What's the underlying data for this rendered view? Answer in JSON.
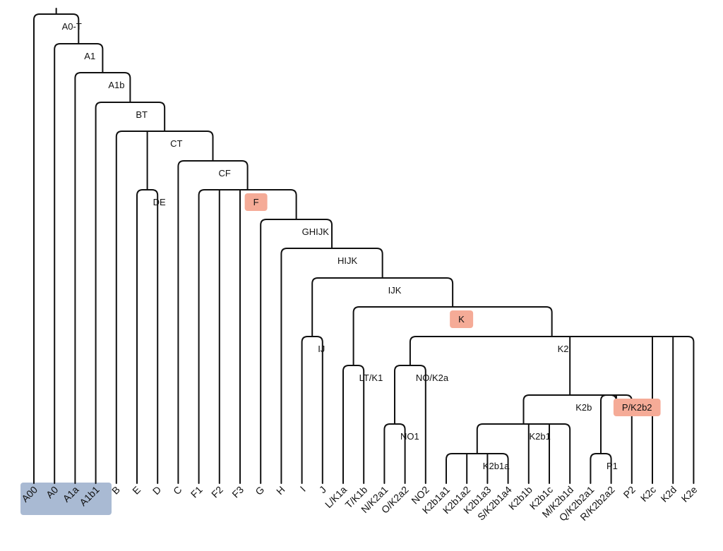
{
  "diagram": {
    "type": "phylogenetic-tree",
    "highlight_colors": {
      "node": "#f5ab97",
      "leaf_group": "#a9bad3"
    },
    "leaves": [
      {
        "id": "A00",
        "label": "A00",
        "highlight": true
      },
      {
        "id": "A0",
        "label": "A0",
        "highlight": true
      },
      {
        "id": "A1a",
        "label": "A1a",
        "highlight": true
      },
      {
        "id": "A1b1",
        "label": "A1b1",
        "highlight": true
      },
      {
        "id": "B",
        "label": "B"
      },
      {
        "id": "E",
        "label": "E"
      },
      {
        "id": "D",
        "label": "D"
      },
      {
        "id": "C",
        "label": "C"
      },
      {
        "id": "F1",
        "label": "F1"
      },
      {
        "id": "F2",
        "label": "F2"
      },
      {
        "id": "F3",
        "label": "F3"
      },
      {
        "id": "G",
        "label": "G"
      },
      {
        "id": "H",
        "label": "H"
      },
      {
        "id": "I",
        "label": "I"
      },
      {
        "id": "J",
        "label": "J"
      },
      {
        "id": "L_K1a",
        "label": "L/K1a"
      },
      {
        "id": "T_K1b",
        "label": "T/K1b"
      },
      {
        "id": "N_K2a1",
        "label": "N/K2a1"
      },
      {
        "id": "O_K2a2",
        "label": "O/K2a2"
      },
      {
        "id": "NO2",
        "label": "NO2"
      },
      {
        "id": "K2b1a1",
        "label": "K2b1a1"
      },
      {
        "id": "K2b1a2",
        "label": "K2b1a2"
      },
      {
        "id": "K2b1a3",
        "label": "K2b1a3"
      },
      {
        "id": "S_K2b1a4",
        "label": "S/K2b1a4"
      },
      {
        "id": "K2b1b",
        "label": "K2b1b"
      },
      {
        "id": "K2b1c",
        "label": "K2b1c"
      },
      {
        "id": "M_K2b1d",
        "label": "M/K2b1d"
      },
      {
        "id": "Q_K2b2a1",
        "label": "Q/K2b2a1"
      },
      {
        "id": "R_K2b2a2",
        "label": "R/K2b2a2"
      },
      {
        "id": "P2",
        "label": "P2"
      },
      {
        "id": "K2c",
        "label": "K2c"
      },
      {
        "id": "K2d",
        "label": "K2d"
      },
      {
        "id": "K2e",
        "label": "K2e"
      }
    ],
    "nodes": [
      {
        "id": "A0-T",
        "label": "A0-T",
        "children": [
          "A00",
          "A1"
        ]
      },
      {
        "id": "A1",
        "label": "A1",
        "children": [
          "A0",
          "A1b"
        ]
      },
      {
        "id": "A1b",
        "label": "A1b",
        "children": [
          "A1a",
          "BT"
        ]
      },
      {
        "id": "BT",
        "label": "BT",
        "children": [
          "A1b1",
          "CT"
        ]
      },
      {
        "id": "CT",
        "label": "CT",
        "children": [
          "B",
          "DE",
          "CF"
        ]
      },
      {
        "id": "DE",
        "label": "DE",
        "children": [
          "E",
          "D"
        ]
      },
      {
        "id": "CF",
        "label": "CF",
        "children": [
          "C",
          "F"
        ]
      },
      {
        "id": "F",
        "label": "F",
        "highlight": true,
        "children": [
          "F1",
          "F2",
          "F3",
          "GHIJK"
        ]
      },
      {
        "id": "GHIJK",
        "label": "GHIJK",
        "children": [
          "G",
          "HIJK"
        ]
      },
      {
        "id": "HIJK",
        "label": "HIJK",
        "children": [
          "H",
          "IJK"
        ]
      },
      {
        "id": "IJK",
        "label": "IJK",
        "children": [
          "IJ",
          "K"
        ]
      },
      {
        "id": "IJ",
        "label": "IJ",
        "children": [
          "I",
          "J"
        ]
      },
      {
        "id": "K",
        "label": "K",
        "highlight": true,
        "children": [
          "LT_K1",
          "K2"
        ]
      },
      {
        "id": "LT_K1",
        "label": "LT/K1",
        "children": [
          "L_K1a",
          "T_K1b"
        ]
      },
      {
        "id": "K2",
        "label": "K2",
        "children": [
          "NO_K2a",
          "K2b",
          "K2c",
          "K2d",
          "K2e"
        ]
      },
      {
        "id": "NO_K2a",
        "label": "NO/K2a",
        "children": [
          "NO1",
          "NO2"
        ]
      },
      {
        "id": "NO1",
        "label": "NO1",
        "children": [
          "N_K2a1",
          "O_K2a2"
        ]
      },
      {
        "id": "K2b",
        "label": "K2b",
        "children": [
          "K2b1",
          "P_K2b2"
        ]
      },
      {
        "id": "K2b1",
        "label": "K2b1",
        "children": [
          "K2b1a",
          "K2b1b",
          "K2b1c",
          "M_K2b1d"
        ]
      },
      {
        "id": "K2b1a",
        "label": "K2b1a",
        "children": [
          "K2b1a1",
          "K2b1a2",
          "K2b1a3",
          "S_K2b1a4"
        ]
      },
      {
        "id": "P_K2b2",
        "label": "P/K2b2",
        "highlight": true,
        "children": [
          "P1",
          "P2"
        ]
      },
      {
        "id": "P1",
        "label": "P1",
        "children": [
          "Q_K2b2a1",
          "R_K2b2a2"
        ]
      }
    ]
  }
}
